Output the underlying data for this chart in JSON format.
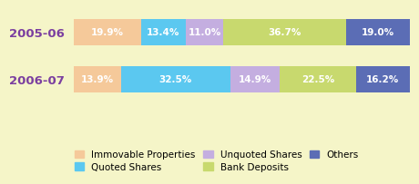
{
  "years": [
    "2005-06",
    "2006-07"
  ],
  "categories": [
    "Immovable Properties",
    "Quoted Shares",
    "Unquoted Shares",
    "Bank Deposits",
    "Others"
  ],
  "values": [
    [
      19.9,
      13.4,
      11.0,
      36.7,
      19.0
    ],
    [
      13.9,
      32.5,
      14.9,
      22.5,
      16.2
    ]
  ],
  "colors": [
    "#f5c99a",
    "#5bc8f0",
    "#c4aee0",
    "#c8d96e",
    "#5b6db5"
  ],
  "background_color": "#f5f5c8",
  "label_color": "#ffffff",
  "year_label_color": "#7b3fa0",
  "label_fontsize": 7.5,
  "year_fontsize": 9.5,
  "legend_fontsize": 7.5,
  "bar_height": 0.28
}
